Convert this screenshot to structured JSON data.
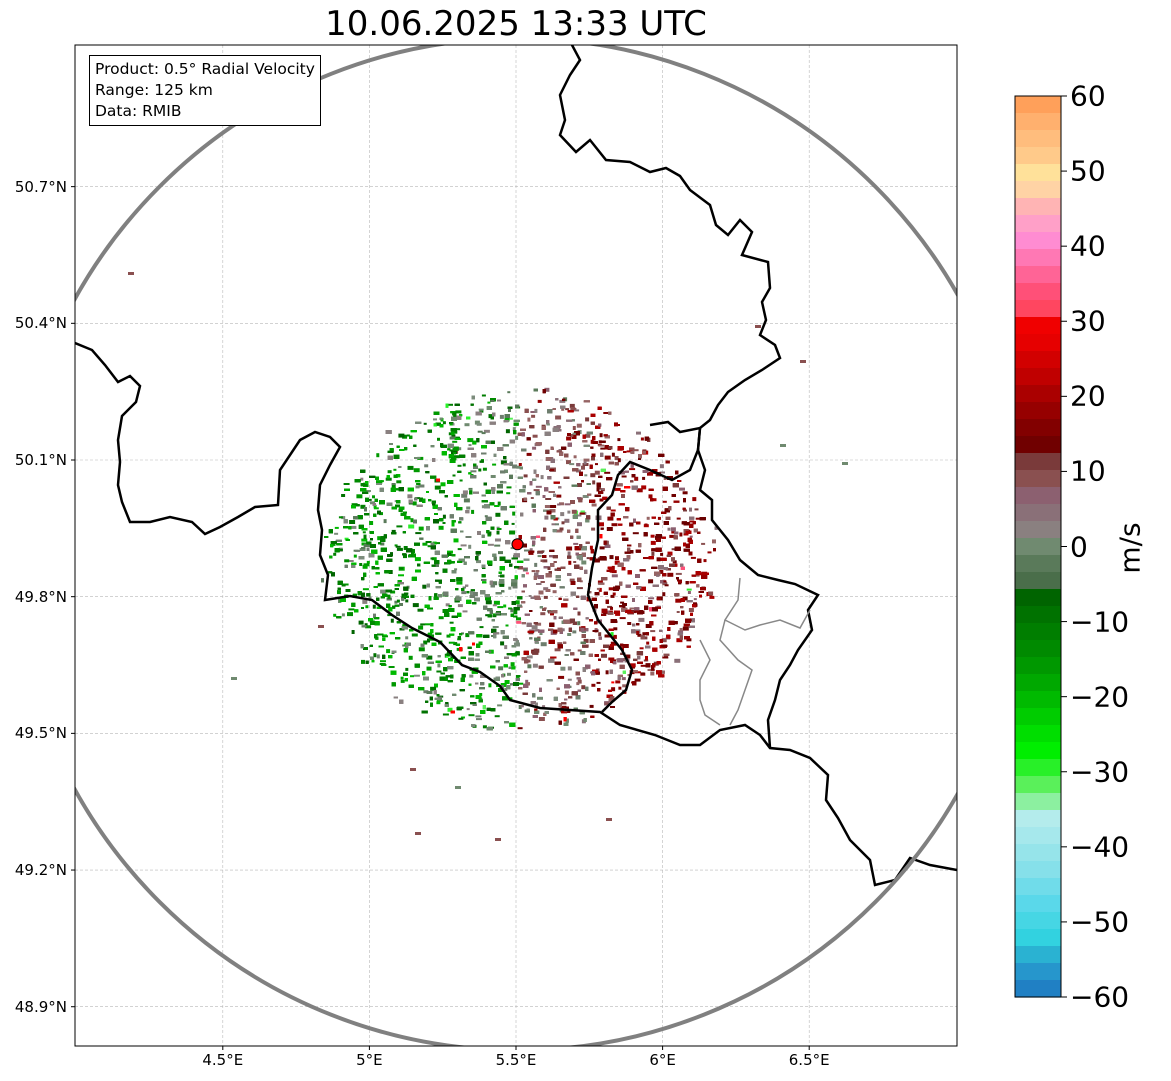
{
  "title": "10.06.2025 13:33 UTC",
  "info": {
    "product": "Product: 0.5° Radial Velocity",
    "range": "Range: 125 km",
    "source": "Data: RMIB"
  },
  "map": {
    "lon_range": [
      4.0,
      7.0
    ],
    "lat_range": [
      48.8,
      51.0
    ],
    "lat_ticks": [
      {
        "value": 50.7,
        "label": "50.7°N"
      },
      {
        "value": 50.4,
        "label": "50.4°N"
      },
      {
        "value": 50.1,
        "label": "50.1°N"
      },
      {
        "value": 49.8,
        "label": "49.8°N"
      },
      {
        "value": 49.5,
        "label": "49.5°N"
      },
      {
        "value": 49.2,
        "label": "49.2°N"
      },
      {
        "value": 48.9,
        "label": "48.9°N"
      }
    ],
    "lon_ticks": [
      {
        "value": 4.5,
        "label": "4.5°E"
      },
      {
        "value": 5.0,
        "label": "5°E"
      },
      {
        "value": 5.5,
        "label": "5.5°E"
      },
      {
        "value": 6.0,
        "label": "6°E"
      },
      {
        "value": 6.5,
        "label": "6.5°E"
      }
    ],
    "radar_site": {
      "lon": 5.505,
      "lat": 49.915
    },
    "range_ring_km": 125,
    "gridlines": true
  },
  "colorbar": {
    "unit": "m/s",
    "min": -60,
    "max": 60,
    "ticks": [
      {
        "value": 60,
        "label": "60"
      },
      {
        "value": 50,
        "label": "50"
      },
      {
        "value": 40,
        "label": "40"
      },
      {
        "value": 30,
        "label": "30"
      },
      {
        "value": 20,
        "label": "20"
      },
      {
        "value": 10,
        "label": "10"
      },
      {
        "value": 0,
        "label": "0"
      },
      {
        "value": -10,
        "label": "−10"
      },
      {
        "value": -20,
        "label": "−20"
      },
      {
        "value": -30,
        "label": "−30"
      },
      {
        "value": -40,
        "label": "−40"
      },
      {
        "value": -50,
        "label": "−50"
      },
      {
        "value": -60,
        "label": "−60"
      }
    ],
    "colors_top_to_bottom": [
      "#ffa05a",
      "#ffb06e",
      "#ffbd7d",
      "#ffca8a",
      "#ffe19a",
      "#ffd3a5",
      "#ffb4b4",
      "#ffa0c8",
      "#ff8cd2",
      "#ff78b4",
      "#ff6496",
      "#ff5078",
      "#ff4660",
      "#f00000",
      "#e60000",
      "#d20000",
      "#c00000",
      "#aa0000",
      "#960000",
      "#820000",
      "#700000",
      "#7a3a3a",
      "#8a5050",
      "#8c6070",
      "#8a7078",
      "#8a8080",
      "#708a70",
      "#5a7a5a",
      "#4a6e4a",
      "#006400",
      "#007200",
      "#007e00",
      "#008a00",
      "#009800",
      "#00a800",
      "#00ba00",
      "#00cc00",
      "#00de00",
      "#00ee00",
      "#28f028",
      "#5af05a",
      "#8cf0a0",
      "#b4ecec",
      "#a6e8ec",
      "#96e4ea",
      "#86e0ea",
      "#70dcea",
      "#5ad8ea",
      "#46d6e4",
      "#32d2e0",
      "#2ab2d2",
      "#2696cc",
      "#2080c4"
    ]
  }
}
